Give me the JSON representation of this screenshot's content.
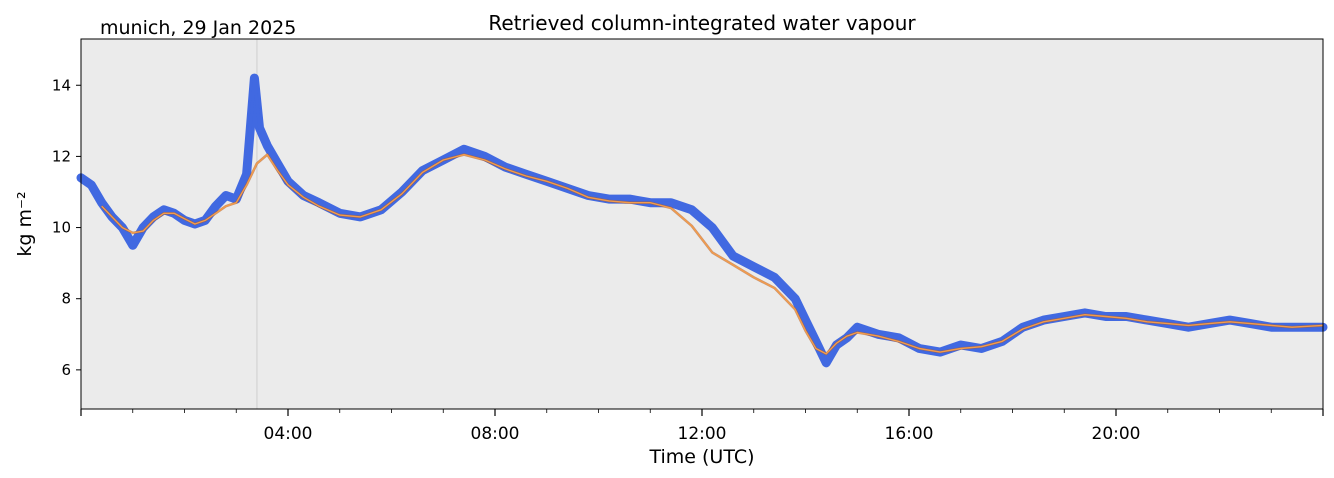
{
  "chart_data": {
    "type": "line",
    "title": "Retrieved column-integrated water vapour",
    "location_label": "munich, 29 Jan 2025",
    "xlabel": "Time (UTC)",
    "ylabel": "kg m⁻²",
    "xlim": [
      "00:00",
      "24:00"
    ],
    "ylim": [
      4.9,
      15.3
    ],
    "x_ticks": [
      {
        "label": "04:00",
        "hour": 4
      },
      {
        "label": "08:00",
        "hour": 8
      },
      {
        "label": "12:00",
        "hour": 12
      },
      {
        "label": "16:00",
        "hour": 16
      },
      {
        "label": "20:00",
        "hour": 20
      }
    ],
    "y_ticks": [
      6,
      8,
      10,
      12,
      14
    ],
    "grid": false,
    "background_color": "#ebebeb",
    "marker_line_hour": 3.4,
    "series": [
      {
        "role": "raw",
        "color": "#4169e1",
        "x_hours": [
          0.0,
          0.2,
          0.4,
          0.6,
          0.8,
          1.0,
          1.2,
          1.4,
          1.6,
          1.8,
          2.0,
          2.2,
          2.4,
          2.6,
          2.8,
          3.0,
          3.2,
          3.35,
          3.45,
          3.6,
          3.8,
          4.0,
          4.3,
          4.6,
          5.0,
          5.4,
          5.8,
          6.2,
          6.6,
          7.0,
          7.4,
          7.8,
          8.2,
          8.6,
          9.0,
          9.4,
          9.8,
          10.2,
          10.6,
          11.0,
          11.4,
          11.8,
          12.2,
          12.6,
          13.0,
          13.4,
          13.8,
          14.0,
          14.2,
          14.4,
          14.6,
          14.8,
          15.0,
          15.4,
          15.8,
          16.2,
          16.6,
          17.0,
          17.4,
          17.8,
          18.2,
          18.6,
          19.0,
          19.4,
          19.8,
          20.2,
          20.6,
          21.0,
          21.4,
          21.8,
          22.2,
          22.6,
          23.0,
          23.4,
          24.0
        ],
        "y": [
          11.4,
          11.2,
          10.7,
          10.3,
          10.0,
          9.5,
          10.0,
          10.3,
          10.5,
          10.4,
          10.2,
          10.1,
          10.2,
          10.6,
          10.9,
          10.8,
          11.5,
          14.2,
          12.8,
          12.3,
          11.8,
          11.3,
          10.9,
          10.7,
          10.4,
          10.3,
          10.5,
          11.0,
          11.6,
          11.9,
          12.2,
          12.0,
          11.7,
          11.5,
          11.3,
          11.1,
          10.9,
          10.8,
          10.8,
          10.7,
          10.7,
          10.5,
          10.0,
          9.2,
          8.9,
          8.6,
          8.0,
          7.4,
          6.8,
          6.2,
          6.7,
          6.9,
          7.2,
          7.0,
          6.9,
          6.6,
          6.5,
          6.7,
          6.6,
          6.8,
          7.2,
          7.4,
          7.5,
          7.6,
          7.5,
          7.5,
          7.4,
          7.3,
          7.2,
          7.3,
          7.4,
          7.3,
          7.2,
          7.2,
          7.2
        ]
      },
      {
        "role": "smoothed",
        "color": "#f39c4b",
        "x_hours": [
          0.4,
          0.6,
          0.8,
          1.0,
          1.2,
          1.4,
          1.6,
          1.8,
          2.0,
          2.2,
          2.4,
          2.6,
          2.8,
          3.0,
          3.2,
          3.4,
          3.6,
          3.8,
          4.0,
          4.3,
          4.6,
          5.0,
          5.4,
          5.8,
          6.2,
          6.6,
          7.0,
          7.4,
          7.8,
          8.2,
          8.6,
          9.0,
          9.4,
          9.8,
          10.2,
          10.6,
          11.0,
          11.4,
          11.8,
          12.2,
          12.6,
          13.0,
          13.4,
          13.8,
          14.0,
          14.2,
          14.4,
          14.6,
          14.8,
          15.0,
          15.4,
          15.8,
          16.2,
          16.6,
          17.0,
          17.4,
          17.8,
          18.2,
          18.6,
          19.0,
          19.4,
          19.8,
          20.2,
          20.6,
          21.0,
          21.4,
          21.8,
          22.2,
          22.6,
          23.0,
          23.4,
          24.0
        ],
        "y": [
          10.6,
          10.3,
          10.0,
          9.85,
          9.9,
          10.2,
          10.4,
          10.4,
          10.25,
          10.1,
          10.2,
          10.4,
          10.6,
          10.7,
          11.2,
          11.8,
          12.05,
          11.6,
          11.2,
          10.85,
          10.6,
          10.35,
          10.3,
          10.5,
          10.95,
          11.55,
          11.9,
          12.05,
          11.9,
          11.65,
          11.45,
          11.3,
          11.1,
          10.85,
          10.75,
          10.7,
          10.7,
          10.55,
          10.05,
          9.3,
          8.95,
          8.6,
          8.3,
          7.7,
          7.1,
          6.6,
          6.45,
          6.75,
          6.95,
          7.05,
          6.95,
          6.8,
          6.6,
          6.5,
          6.6,
          6.65,
          6.8,
          7.15,
          7.35,
          7.45,
          7.55,
          7.5,
          7.45,
          7.35,
          7.3,
          7.25,
          7.3,
          7.35,
          7.3,
          7.25,
          7.2,
          7.25
        ]
      }
    ]
  }
}
